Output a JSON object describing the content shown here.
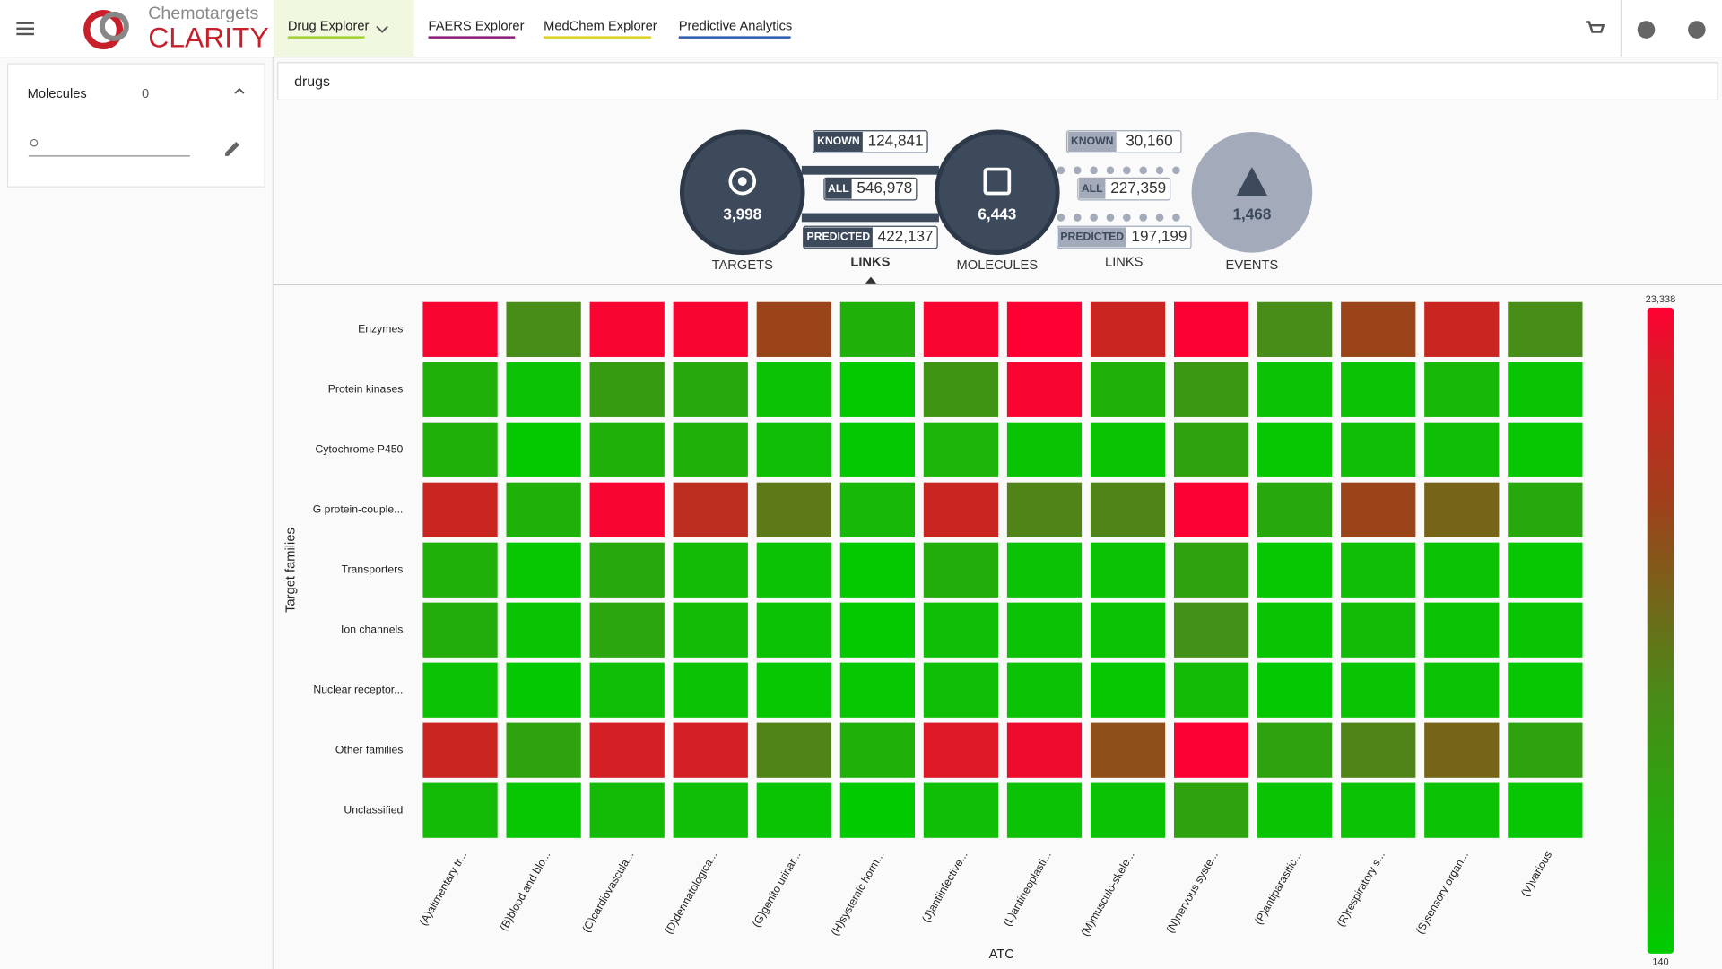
{
  "header": {
    "brand_top": "Chemotargets",
    "brand": "CLARITY",
    "tabs": [
      "Drug Explorer",
      "FAERS Explorer",
      "MedChem Explorer",
      "Predictive Analytics"
    ]
  },
  "sidebar": {
    "label": "Molecules",
    "count": "0"
  },
  "search": "drugs",
  "network": {
    "nodes": [
      {
        "label": "TARGETS",
        "value": "3,998"
      },
      {
        "label": "MOLECULES",
        "value": "6,443"
      },
      {
        "label": "EVENTS",
        "value": "1,468"
      }
    ],
    "links": [
      {
        "label": "LINKS",
        "known_label": "KNOWN",
        "known": "124,841",
        "all_label": "ALL",
        "all": "546,978",
        "predicted_label": "PREDICTED",
        "predicted": "422,137"
      },
      {
        "label": "LINKS",
        "known_label": "KNOWN",
        "known": "30,160",
        "all_label": "ALL",
        "all": "227,359",
        "predicted_label": "PREDICTED",
        "predicted": "197,199"
      }
    ]
  },
  "chart_data": {
    "type": "heatmap",
    "x_label": "ATC",
    "y_label": "Target families",
    "categories": [
      "(A)alimentary tr...",
      "(B)blood and blo...",
      "(C)cardiovascula...",
      "(D)dermatologica...",
      "(G)genito urinar...",
      "(H)systemic horm...",
      "(J)antiinfective...",
      "(L)antineoplasti...",
      "(M)musculo-skele...",
      "(N)nervous syste...",
      "(P)antiparasitic...",
      "(R)respiratory s...",
      "(S)sensory organ...",
      "(V)various"
    ],
    "rows": [
      "Enzymes",
      "Protein kinases",
      "Cytochrome P450",
      "G protein-couple...",
      "Transporters",
      "Ion channels",
      "Nuclear receptor...",
      "Other families",
      "Unclassified"
    ],
    "values": [
      [
        23000,
        9000,
        23000,
        23000,
        16000,
        4000,
        23000,
        23338,
        20000,
        23200,
        9000,
        16000,
        20000,
        9000
      ],
      [
        4000,
        1500,
        7000,
        5000,
        1500,
        500,
        8000,
        23000,
        4000,
        7500,
        1500,
        1500,
        3000,
        1200
      ],
      [
        4000,
        600,
        4000,
        4000,
        2000,
        700,
        3500,
        1200,
        1200,
        6000,
        1000,
        2000,
        2000,
        1000
      ],
      [
        20000,
        4000,
        23000,
        19000,
        11000,
        3000,
        20000,
        10000,
        10000,
        23200,
        5000,
        16000,
        13000,
        5000
      ],
      [
        4000,
        1000,
        5000,
        2500,
        1500,
        600,
        4500,
        1500,
        1500,
        6000,
        1000,
        2000,
        1500,
        1000
      ],
      [
        4500,
        1200,
        5500,
        2500,
        1500,
        600,
        2000,
        1500,
        1500,
        8500,
        1200,
        2500,
        1500,
        1200
      ],
      [
        1500,
        700,
        2000,
        1500,
        1000,
        1000,
        2000,
        1500,
        1000,
        2500,
        700,
        1200,
        1500,
        1000
      ],
      [
        20000,
        6000,
        21000,
        21000,
        10000,
        4000,
        21500,
        22500,
        15000,
        23200,
        6000,
        10000,
        13000,
        6000
      ],
      [
        2500,
        900,
        2500,
        2000,
        1200,
        300,
        2000,
        1500,
        1500,
        6000,
        1200,
        1500,
        1500,
        1000
      ]
    ],
    "zlim": [
      140,
      23338
    ],
    "zticks": [
      140,
      {
        "value": 23338,
        "label": "23,338"
      }
    ],
    "colors": [
      "#00cc00",
      "#4a8a18",
      "#a0401a",
      "#d41f24",
      "#ff0033"
    ]
  }
}
